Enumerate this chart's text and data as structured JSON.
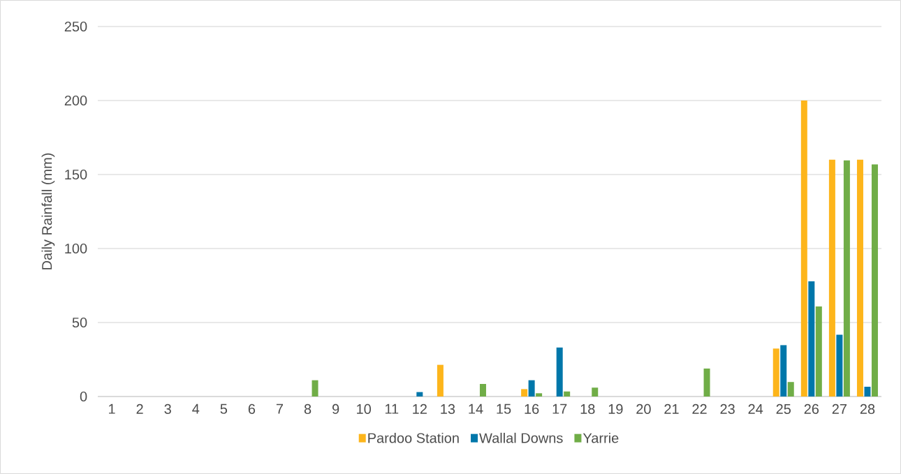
{
  "chart_data": {
    "type": "bar",
    "ylabel": "Daily Rainfall  (mm)",
    "categories": [
      "1",
      "2",
      "3",
      "4",
      "5",
      "6",
      "7",
      "8",
      "9",
      "10",
      "11",
      "12",
      "13",
      "14",
      "15",
      "16",
      "17",
      "18",
      "19",
      "20",
      "21",
      "22",
      "23",
      "24",
      "25",
      "26",
      "27",
      "28"
    ],
    "series": [
      {
        "name": "Pardoo Station",
        "color": "#fdb51b",
        "values": [
          0,
          0,
          0,
          0,
          0,
          0,
          0,
          0,
          0,
          0,
          0,
          0,
          21.4,
          0,
          0,
          5,
          0,
          0,
          0,
          0,
          0,
          0,
          0,
          0,
          32.4,
          200,
          160,
          160
        ]
      },
      {
        "name": "Wallal Downs",
        "color": "#0077aa",
        "values": [
          0,
          0,
          0,
          0,
          0,
          0,
          0,
          0,
          0,
          0,
          0,
          3,
          0,
          0,
          0,
          11,
          33.1,
          0,
          0,
          0,
          0,
          0,
          0,
          0,
          34.7,
          77.8,
          41.7,
          6.6
        ]
      },
      {
        "name": "Yarrie",
        "color": "#70ad47",
        "values": [
          0,
          0,
          0,
          0,
          0,
          0,
          0,
          11,
          0,
          0,
          0,
          0,
          0,
          8.5,
          0,
          2.2,
          3.4,
          6,
          0,
          0,
          0,
          18.9,
          0,
          0,
          9.8,
          60.8,
          159.5,
          156.8
        ]
      }
    ],
    "ylim": [
      0,
      250
    ],
    "yticks": [
      0,
      50,
      100,
      150,
      200,
      250
    ],
    "grid": "y",
    "legend": "bottom"
  }
}
